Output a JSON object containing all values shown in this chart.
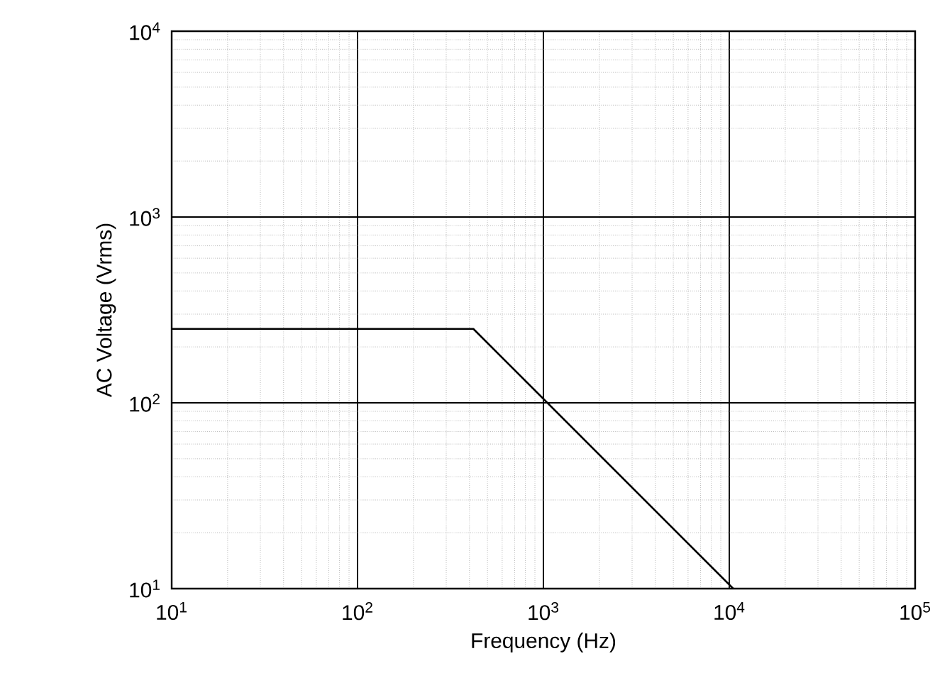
{
  "chart_data": {
    "type": "line",
    "xlabel": "Frequency (Hz)",
    "ylabel": "AC Voltage (Vrms)",
    "log": "xy",
    "grid": true,
    "xlim": [
      10,
      100000
    ],
    "ylim": [
      10,
      10000
    ],
    "xticks": [
      {
        "value": 10,
        "label": "10$^{1}$"
      },
      {
        "value": 100,
        "label": "10$^{2}$"
      },
      {
        "value": 1000,
        "label": "10$^{3}$"
      },
      {
        "value": 10000,
        "label": "10$^{4}$"
      },
      {
        "value": 100000,
        "label": "10$^{5}$"
      }
    ],
    "yticks": [
      {
        "value": 10,
        "label": "10$^{1}$"
      },
      {
        "value": 100,
        "label": "10$^{2}$"
      },
      {
        "value": 1000,
        "label": "10$^{3}$"
      },
      {
        "value": 10000,
        "label": "10$^{4}$"
      }
    ],
    "series": [
      {
        "color": "#000000",
        "x": [
          10,
          420,
          10500
        ],
        "values": [
          250,
          250,
          10
        ]
      }
    ]
  }
}
